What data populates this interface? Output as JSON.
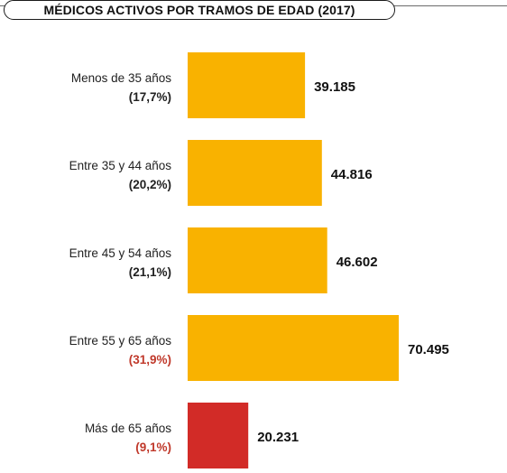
{
  "colors": {
    "bar_default": "#F9B200",
    "bar_highlight": "#D22B27",
    "pct_default": "#222222",
    "pct_highlight": "#C0392B"
  },
  "chart_data": {
    "type": "bar",
    "orientation": "horizontal",
    "title": "MÉDICOS ACTIVOS POR TRAMOS DE EDAD (2017)",
    "categories": [
      "Menos de 35 años",
      "Entre 35 y 44 años",
      "Entre 45 y 54 años",
      "Entre 55 y 65 años",
      "Más de 65 años"
    ],
    "percent_labels": [
      "(17,7%)",
      "(20,2%)",
      "(21,1%)",
      "(31,9%)",
      "(9,1%)"
    ],
    "values": [
      39185,
      44816,
      46602,
      70495,
      20231
    ],
    "value_labels": [
      "39.185",
      "44.816",
      "46.602",
      "70.495",
      "20.231"
    ],
    "highlighted_percent": [
      false,
      false,
      false,
      true,
      true
    ],
    "highlighted_bar": [
      false,
      false,
      false,
      false,
      true
    ],
    "xlim": [
      0,
      70495
    ],
    "grid": false,
    "legend": "none"
  }
}
